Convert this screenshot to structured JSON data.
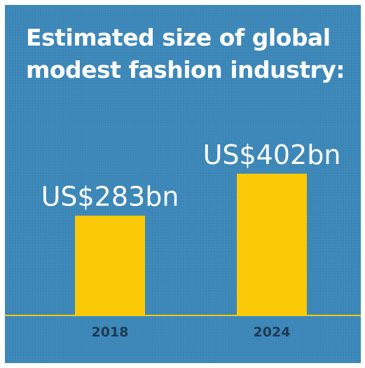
{
  "colors": {
    "background": "#3a87b9",
    "bar": "#fbc907",
    "baseline": "#fbc907",
    "title": "#ffffff",
    "value_label": "#ffffff",
    "tick_label": "#1e3a52"
  },
  "chart_data": {
    "type": "bar",
    "title": "Estimated size of global modest fashion industry:",
    "categories": [
      "2018",
      "2024"
    ],
    "values": [
      283,
      402
    ],
    "data_labels": [
      "US$283bn",
      "US$402bn"
    ],
    "xlabel": "",
    "ylabel": "",
    "unit": "US$ billion",
    "ylim": [
      0,
      600
    ],
    "grid": false,
    "legend": "none"
  }
}
